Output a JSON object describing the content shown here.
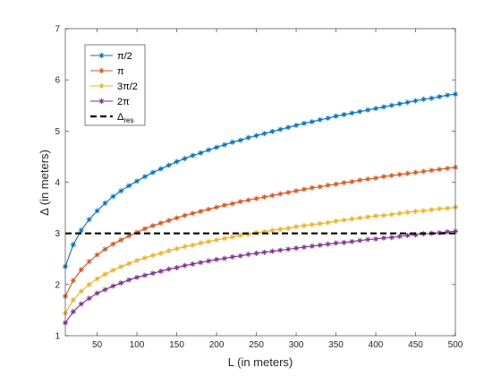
{
  "chart_data": {
    "type": "line",
    "xlabel": "L (in meters)",
    "ylabel": "Δ (in meters)",
    "xlim": [
      10,
      500
    ],
    "ylim": [
      1,
      7
    ],
    "xticks": [
      50,
      100,
      150,
      200,
      250,
      300,
      350,
      400,
      450,
      500
    ],
    "yticks": [
      1,
      2,
      3,
      4,
      5,
      6,
      7
    ],
    "grid": false,
    "legend_position": "top-left",
    "x": [
      10,
      20,
      30,
      40,
      50,
      60,
      70,
      80,
      90,
      100,
      110,
      120,
      130,
      140,
      150,
      160,
      170,
      180,
      190,
      200,
      210,
      220,
      230,
      240,
      250,
      260,
      270,
      280,
      290,
      300,
      310,
      320,
      330,
      340,
      350,
      360,
      370,
      380,
      390,
      400,
      410,
      420,
      430,
      440,
      450,
      460,
      470,
      480,
      490,
      500
    ],
    "series": [
      {
        "name": "π/2",
        "color": "#0072BD",
        "marker": "asterisk",
        "linestyle": "solid",
        "values": [
          2.35,
          2.78,
          3.06,
          3.27,
          3.44,
          3.59,
          3.72,
          3.83,
          3.93,
          4.02,
          4.11,
          4.19,
          4.26,
          4.33,
          4.4,
          4.46,
          4.52,
          4.57,
          4.63,
          4.68,
          4.73,
          4.78,
          4.82,
          4.87,
          4.91,
          4.95,
          4.99,
          5.03,
          5.07,
          5.11,
          5.15,
          5.18,
          5.22,
          5.25,
          5.29,
          5.32,
          5.35,
          5.38,
          5.41,
          5.44,
          5.47,
          5.5,
          5.53,
          5.56,
          5.59,
          5.62,
          5.64,
          5.67,
          5.7,
          5.72
        ]
      },
      {
        "name": "π",
        "color": "#D95319",
        "marker": "asterisk",
        "linestyle": "solid",
        "values": [
          1.77,
          2.08,
          2.29,
          2.45,
          2.58,
          2.69,
          2.79,
          2.87,
          2.95,
          3.02,
          3.09,
          3.15,
          3.2,
          3.25,
          3.3,
          3.35,
          3.39,
          3.43,
          3.47,
          3.51,
          3.55,
          3.58,
          3.62,
          3.65,
          3.68,
          3.71,
          3.74,
          3.77,
          3.8,
          3.83,
          3.86,
          3.89,
          3.91,
          3.94,
          3.96,
          3.99,
          4.01,
          4.04,
          4.06,
          4.08,
          4.11,
          4.13,
          4.15,
          4.17,
          4.19,
          4.21,
          4.23,
          4.25,
          4.27,
          4.29
        ]
      },
      {
        "name": "3π/2",
        "color": "#EDB120",
        "marker": "asterisk",
        "linestyle": "solid",
        "values": [
          1.44,
          1.7,
          1.87,
          2.0,
          2.11,
          2.2,
          2.28,
          2.35,
          2.41,
          2.47,
          2.52,
          2.57,
          2.61,
          2.66,
          2.7,
          2.74,
          2.77,
          2.81,
          2.84,
          2.87,
          2.9,
          2.93,
          2.96,
          2.98,
          3.01,
          3.03,
          3.06,
          3.08,
          3.1,
          3.13,
          3.15,
          3.17,
          3.19,
          3.21,
          3.24,
          3.26,
          3.28,
          3.3,
          3.32,
          3.34,
          3.35,
          3.37,
          3.39,
          3.41,
          3.43,
          3.44,
          3.46,
          3.48,
          3.49,
          3.51
        ]
      },
      {
        "name": "2π",
        "color": "#7E2F8E",
        "marker": "asterisk",
        "linestyle": "solid",
        "values": [
          1.25,
          1.47,
          1.62,
          1.73,
          1.83,
          1.9,
          1.97,
          2.03,
          2.09,
          2.14,
          2.18,
          2.22,
          2.26,
          2.3,
          2.33,
          2.37,
          2.4,
          2.43,
          2.46,
          2.49,
          2.51,
          2.54,
          2.56,
          2.59,
          2.61,
          2.63,
          2.65,
          2.67,
          2.69,
          2.71,
          2.73,
          2.75,
          2.77,
          2.79,
          2.81,
          2.82,
          2.84,
          2.86,
          2.88,
          2.89,
          2.91,
          2.92,
          2.94,
          2.96,
          2.97,
          2.99,
          3.0,
          3.01,
          3.03,
          3.04
        ]
      },
      {
        "name": "Δres",
        "color": "#000000",
        "marker": "none",
        "linestyle": "dashed",
        "constant": 3
      }
    ]
  },
  "legend": {
    "entries": [
      {
        "label": "π/2"
      },
      {
        "label": "π"
      },
      {
        "label": "3π/2"
      },
      {
        "label": "2π"
      },
      {
        "label": "Δ",
        "sub": "res"
      }
    ]
  }
}
